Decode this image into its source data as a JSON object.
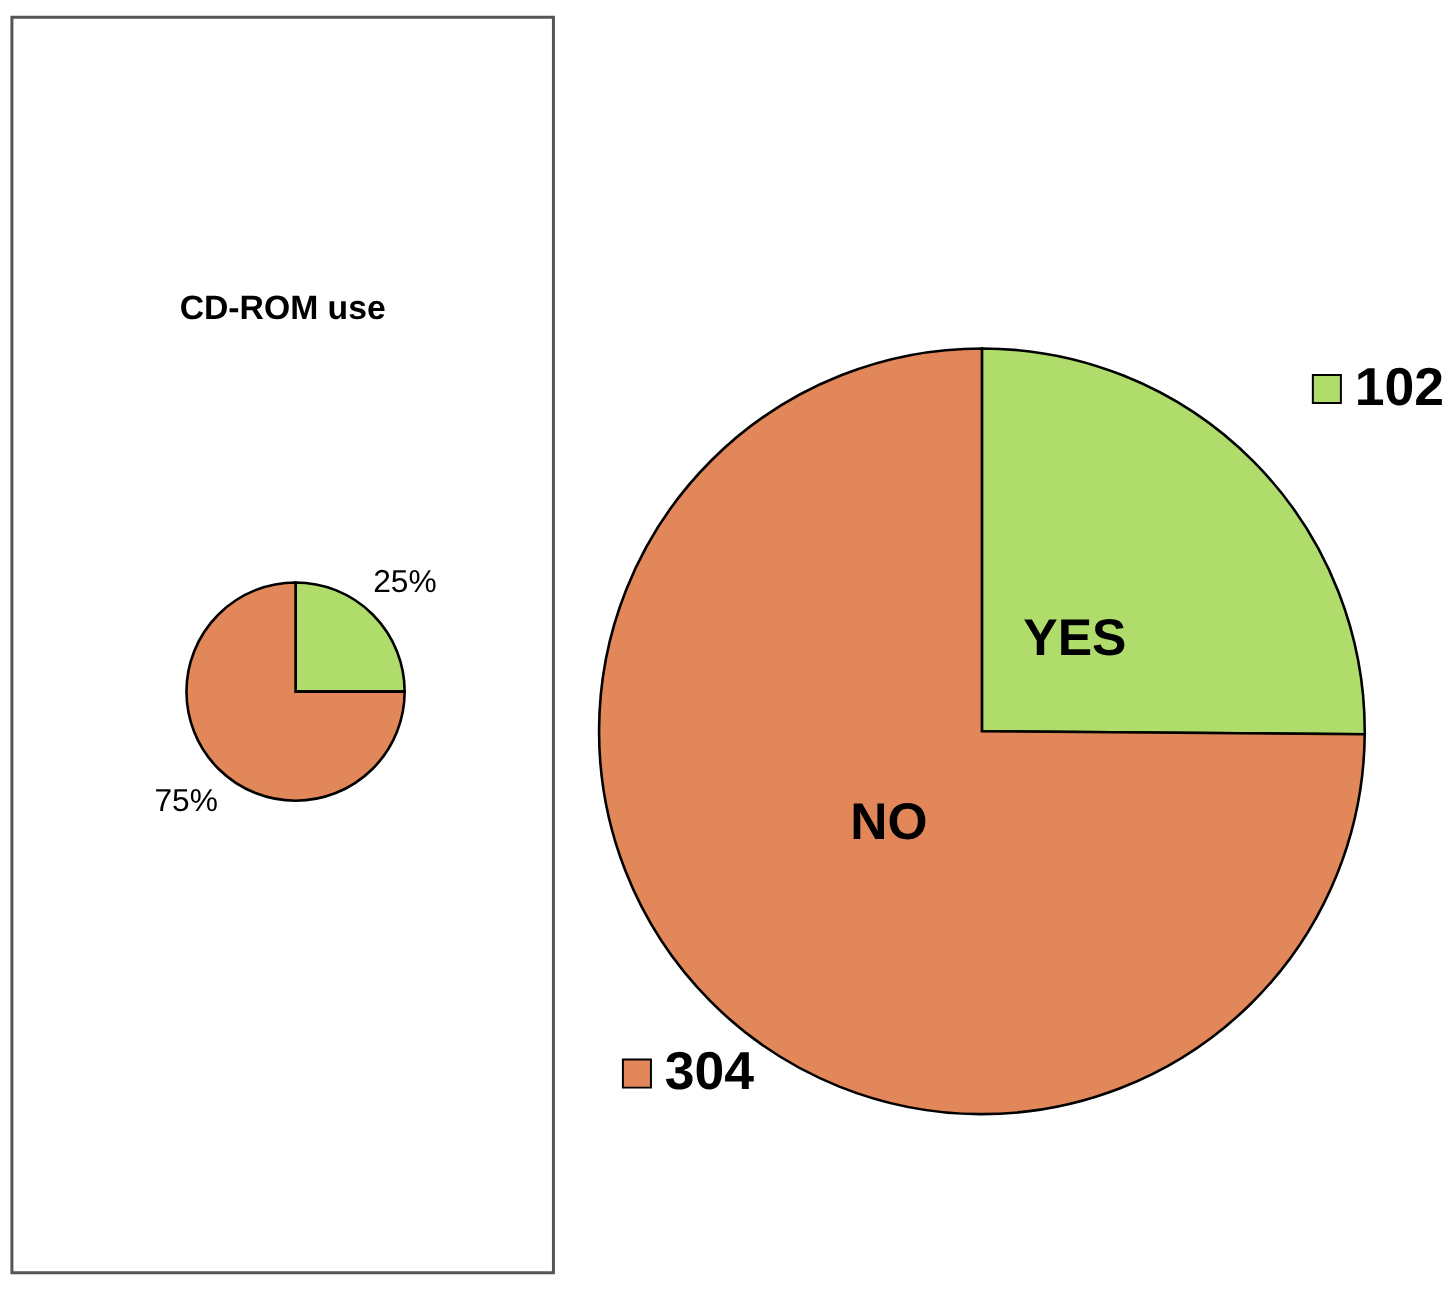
{
  "chart_data": [
    {
      "type": "pie",
      "title": "CD-ROM use",
      "categories": [
        null,
        null
      ],
      "values": [
        25,
        75
      ],
      "colors": [
        "#b0dc6c",
        "#e2875a"
      ],
      "value_labels": [
        "25%",
        "75%"
      ]
    },
    {
      "type": "pie",
      "categories": [
        "YES",
        "NO"
      ],
      "values": [
        102,
        304
      ],
      "colors": [
        "#b4e062",
        "#e1824c"
      ],
      "data_labels": true
    }
  ]
}
